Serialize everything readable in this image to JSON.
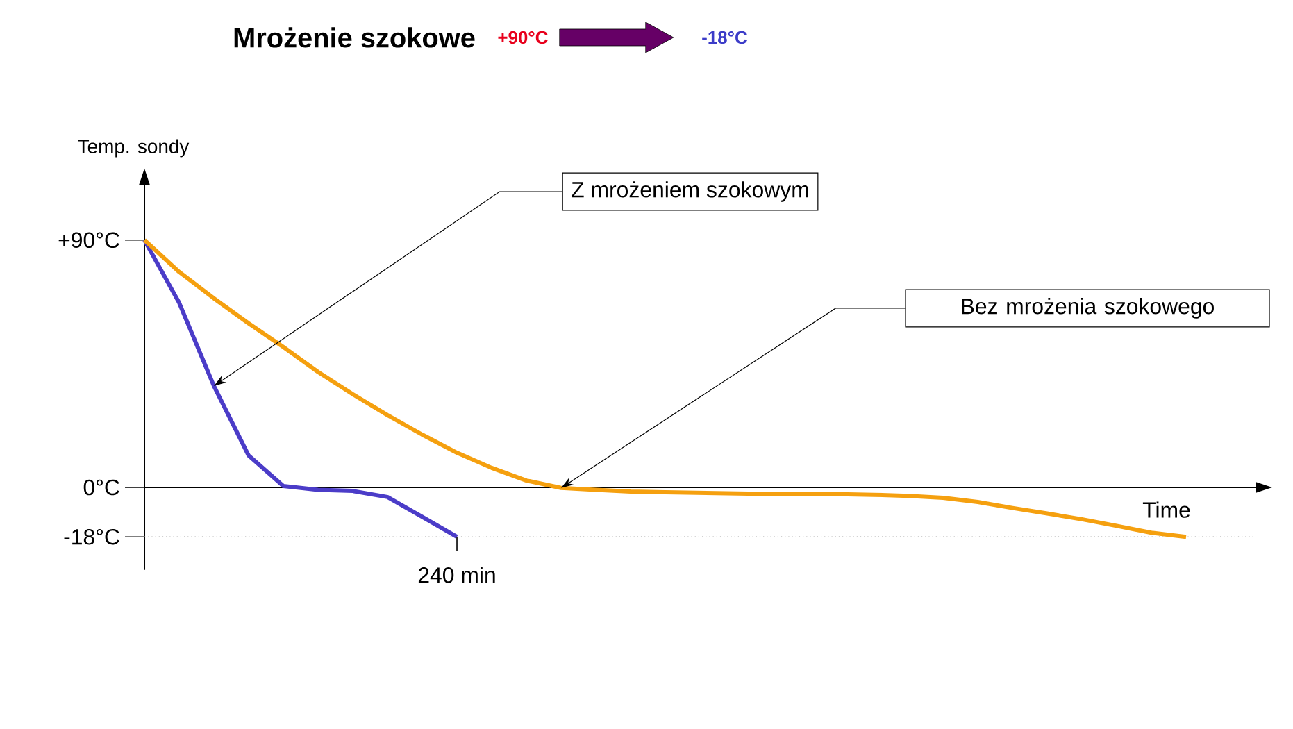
{
  "chart_data": {
    "type": "line",
    "title": "Mrożenie szokowe",
    "ylabel": "Temp. sondy",
    "xlabel": "Time",
    "annotations": [
      "+90°C",
      "-18°C",
      "Z mrożeniem szokowym",
      "Bez mrożenia szokowego",
      "240 min"
    ],
    "categories": [
      null,
      null,
      null,
      null,
      null,
      null,
      null,
      null,
      null,
      null,
      null,
      null,
      null,
      null,
      null,
      null,
      null,
      null,
      null,
      null,
      null,
      null,
      null,
      null,
      null,
      null,
      null,
      null,
      null,
      null,
      null
    ],
    "ylim": [
      -30,
      110
    ],
    "yticks": [
      {
        "value": -18,
        "label": "-18°C"
      },
      {
        "value": 0,
        "label": "0°C"
      },
      {
        "value": 90,
        "label": "+90°C"
      }
    ],
    "marker": "none",
    "line_style": "solid",
    "ref_lines": [
      {
        "axis": "y",
        "value": -18,
        "color": "#a0a0a0",
        "line_style": "dotted"
      }
    ],
    "series": [
      {
        "color": "#4b3cc8",
        "values": [
          90,
          67.2,
          36.9,
          11.6,
          0.5,
          -0.9,
          -1.3,
          -3.5,
          -10.7,
          -18,
          null,
          null,
          null,
          null,
          null,
          null,
          null,
          null,
          null,
          null,
          null,
          null,
          null,
          null,
          null,
          null,
          null,
          null,
          null,
          null,
          null
        ]
      },
      {
        "color": "#f5a00f",
        "values": [
          90,
          78.4,
          68.8,
          59.7,
          51.1,
          42,
          33.9,
          26.3,
          19.2,
          12.6,
          7.1,
          2.5,
          -0.2,
          -0.9,
          -1.5,
          -1.8,
          -2,
          -2.2,
          -2.4,
          -2.5,
          -2.5,
          -2.7,
          -3.1,
          -3.8,
          -5.3,
          -7.5,
          -9.5,
          -11.6,
          -14,
          -16.5,
          -18
        ]
      }
    ]
  }
}
